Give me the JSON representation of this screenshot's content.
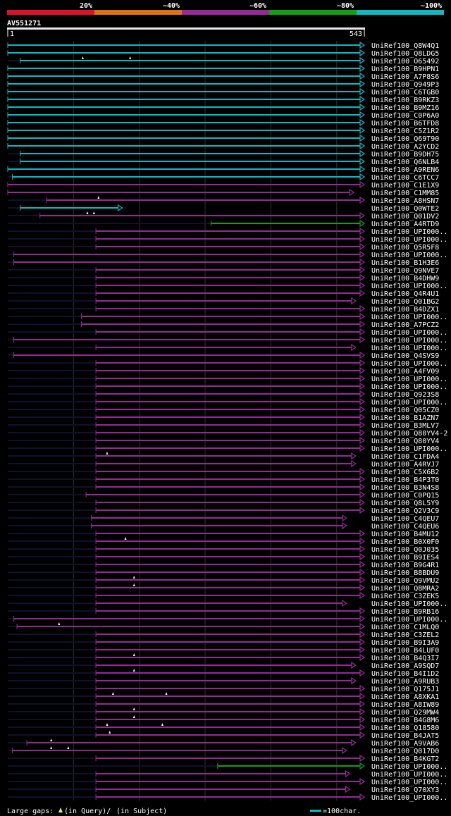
{
  "legend": {
    "scale_labels": [
      "20%",
      "~40%",
      "~60%",
      "~80%",
      "~100%"
    ],
    "scale_colors": [
      "#e0102a",
      "#e07010",
      "#982898",
      "#10a010",
      "#10b8c0"
    ]
  },
  "query": {
    "id": "AV551271",
    "start": "1",
    "end": "543",
    "length": 543
  },
  "footer": {
    "gaps_label": "Large gaps:",
    "in_query": "(in Query)/",
    "in_subject": "(in Subject)",
    "scale_label": "=100char."
  },
  "colors": {
    "cyan": "#10b8c0",
    "magenta": "#982898",
    "green": "#10a010",
    "dim": "#101030",
    "grid": "#303030"
  },
  "hits": [
    {
      "name": "UniRef100_Q8W4Q1",
      "color": "cyan",
      "start": 1,
      "end": 543
    },
    {
      "name": "UniRef100_Q8LDG5",
      "color": "cyan",
      "start": 1,
      "end": 543
    },
    {
      "name": "UniRef100_O65492",
      "color": "cyan",
      "start": 20,
      "end": 543,
      "markers": [
        115,
        187
      ]
    },
    {
      "name": "UniRef100_B9HPN1",
      "color": "cyan",
      "start": 1,
      "end": 543
    },
    {
      "name": "UniRef100_A7P8S6",
      "color": "cyan",
      "start": 1,
      "end": 543
    },
    {
      "name": "UniRef100_Q949P3",
      "color": "cyan",
      "start": 1,
      "end": 543
    },
    {
      "name": "UniRef100_C6TGB0",
      "color": "cyan",
      "start": 1,
      "end": 543
    },
    {
      "name": "UniRef100_B9RKZ3",
      "color": "cyan",
      "start": 1,
      "end": 543
    },
    {
      "name": "UniRef100_B9MZ16",
      "color": "cyan",
      "start": 1,
      "end": 543
    },
    {
      "name": "UniRef100_C0P6A0",
      "color": "cyan",
      "start": 1,
      "end": 543
    },
    {
      "name": "UniRef100_B6TFD8",
      "color": "cyan",
      "start": 1,
      "end": 543
    },
    {
      "name": "UniRef100_C5Z1R2",
      "color": "cyan",
      "start": 1,
      "end": 543
    },
    {
      "name": "UniRef100_Q69T90",
      "color": "cyan",
      "start": 1,
      "end": 543
    },
    {
      "name": "UniRef100_A2YCD2",
      "color": "cyan",
      "start": 1,
      "end": 543
    },
    {
      "name": "UniRef100_B9DH75",
      "color": "cyan",
      "start": 20,
      "end": 543
    },
    {
      "name": "UniRef100_Q6NLB4",
      "color": "cyan",
      "start": 20,
      "end": 543
    },
    {
      "name": "UniRef100_A9REN6",
      "color": "cyan",
      "start": 1,
      "end": 543
    },
    {
      "name": "UniRef100_C6TCC7",
      "color": "cyan",
      "start": 8,
      "end": 543
    },
    {
      "name": "UniRef100_C1E1X9",
      "color": "magenta",
      "start": 1,
      "end": 543
    },
    {
      "name": "UniRef100_C1MM85",
      "color": "magenta",
      "start": 1,
      "end": 527
    },
    {
      "name": "UniRef100_A8HSN7",
      "color": "magenta",
      "start": 60,
      "end": 543,
      "markers": [
        139
      ]
    },
    {
      "name": "UniRef100_Q0WTE2",
      "color": "cyan",
      "start": 20,
      "end": 175
    },
    {
      "name": "UniRef100_Q01DV2",
      "color": "magenta",
      "start": 50,
      "end": 543,
      "markers": [
        122,
        132
      ]
    },
    {
      "name": "UniRef100_A4RTD9",
      "color": "green",
      "start": 310,
      "end": 543
    },
    {
      "name": "UniRef100_UPI000..",
      "color": "magenta",
      "start": 135,
      "end": 543
    },
    {
      "name": "UniRef100_UPI000..",
      "color": "magenta",
      "start": 135,
      "end": 543
    },
    {
      "name": "UniRef100_Q5R5F8",
      "color": "magenta",
      "start": 135,
      "end": 543
    },
    {
      "name": "UniRef100_UPI000..",
      "color": "magenta",
      "start": 10,
      "end": 543
    },
    {
      "name": "UniRef100_B1H3E6",
      "color": "magenta",
      "start": 10,
      "end": 543
    },
    {
      "name": "UniRef100_Q9NVE7",
      "color": "magenta",
      "start": 135,
      "end": 543
    },
    {
      "name": "UniRef100_B4DHW9",
      "color": "magenta",
      "start": 135,
      "end": 543
    },
    {
      "name": "UniRef100_UPI000..",
      "color": "magenta",
      "start": 135,
      "end": 543
    },
    {
      "name": "UniRef100_Q4R4U1",
      "color": "magenta",
      "start": 135,
      "end": 543
    },
    {
      "name": "UniRef100_Q01BG2",
      "color": "magenta",
      "start": 135,
      "end": 530
    },
    {
      "name": "UniRef100_B4DZX1",
      "color": "magenta",
      "start": 135,
      "end": 543
    },
    {
      "name": "UniRef100_UPI000..",
      "color": "magenta",
      "start": 113,
      "end": 543
    },
    {
      "name": "UniRef100_A7PCZ2",
      "color": "magenta",
      "start": 113,
      "end": 543
    },
    {
      "name": "UniRef100_UPI000..",
      "color": "magenta",
      "start": 135,
      "end": 543
    },
    {
      "name": "UniRef100_UPI000..",
      "color": "magenta",
      "start": 10,
      "end": 543
    },
    {
      "name": "UniRef100_UPI000..",
      "color": "magenta",
      "start": 135,
      "end": 530
    },
    {
      "name": "UniRef100_Q4SVS9",
      "color": "magenta",
      "start": 10,
      "end": 543
    },
    {
      "name": "UniRef100_UPI000..",
      "color": "magenta",
      "start": 135,
      "end": 543
    },
    {
      "name": "UniRef100_A4FV09",
      "color": "magenta",
      "start": 135,
      "end": 543
    },
    {
      "name": "UniRef100_UPI000..",
      "color": "magenta",
      "start": 135,
      "end": 543
    },
    {
      "name": "UniRef100_UPI000..",
      "color": "magenta",
      "start": 135,
      "end": 543
    },
    {
      "name": "UniRef100_Q923S8",
      "color": "magenta",
      "start": 135,
      "end": 543
    },
    {
      "name": "UniRef100_UPI000..",
      "color": "magenta",
      "start": 135,
      "end": 543
    },
    {
      "name": "UniRef100_Q05CZ0",
      "color": "magenta",
      "start": 135,
      "end": 543
    },
    {
      "name": "UniRef100_B1AZN7",
      "color": "magenta",
      "start": 135,
      "end": 543
    },
    {
      "name": "UniRef100_B3MLV7",
      "color": "magenta",
      "start": 135,
      "end": 543
    },
    {
      "name": "UniRef100_Q80YV4-2",
      "color": "magenta",
      "start": 135,
      "end": 543
    },
    {
      "name": "UniRef100_Q80YV4",
      "color": "magenta",
      "start": 135,
      "end": 543
    },
    {
      "name": "UniRef100_UPI000..",
      "color": "magenta",
      "start": 135,
      "end": 543
    },
    {
      "name": "UniRef100_C1FDA4",
      "color": "magenta",
      "start": 135,
      "end": 530,
      "markers": [
        152
      ]
    },
    {
      "name": "UniRef100_A4RVJ7",
      "color": "magenta",
      "start": 135,
      "end": 530
    },
    {
      "name": "UniRef100_C5X6B2",
      "color": "magenta",
      "start": 135,
      "end": 543
    },
    {
      "name": "UniRef100_B4P3T0",
      "color": "magenta",
      "start": 135,
      "end": 543
    },
    {
      "name": "UniRef100_B3N4S8",
      "color": "magenta",
      "start": 135,
      "end": 543
    },
    {
      "name": "UniRef100_C0PQ15",
      "color": "magenta",
      "start": 120,
      "end": 543
    },
    {
      "name": "UniRef100_Q8L5Y9",
      "color": "magenta",
      "start": 135,
      "end": 543
    },
    {
      "name": "UniRef100_Q2V3C9",
      "color": "magenta",
      "start": 135,
      "end": 543
    },
    {
      "name": "UniRef100_C4QEU7",
      "color": "magenta",
      "start": 128,
      "end": 516
    },
    {
      "name": "UniRef100_C4QEU6",
      "color": "magenta",
      "start": 128,
      "end": 516
    },
    {
      "name": "UniRef100_B4MU12",
      "color": "magenta",
      "start": 135,
      "end": 543
    },
    {
      "name": "UniRef100_B0X0F0",
      "color": "magenta",
      "start": 135,
      "end": 543,
      "markers": [
        180
      ]
    },
    {
      "name": "UniRef100_Q0J035",
      "color": "magenta",
      "start": 135,
      "end": 543
    },
    {
      "name": "UniRef100_B9IES4",
      "color": "magenta",
      "start": 135,
      "end": 543
    },
    {
      "name": "UniRef100_B9G4R1",
      "color": "magenta",
      "start": 135,
      "end": 543
    },
    {
      "name": "UniRef100_B8BDU9",
      "color": "magenta",
      "start": 135,
      "end": 543
    },
    {
      "name": "UniRef100_Q9VMU2",
      "color": "magenta",
      "start": 135,
      "end": 543,
      "markers": [
        193
      ]
    },
    {
      "name": "UniRef100_Q8MRA2",
      "color": "magenta",
      "start": 135,
      "end": 543,
      "markers": [
        193
      ]
    },
    {
      "name": "UniRef100_C3ZEK5",
      "color": "magenta",
      "start": 135,
      "end": 543
    },
    {
      "name": "UniRef100_UPI000..",
      "color": "magenta",
      "start": 135,
      "end": 516
    },
    {
      "name": "UniRef100_B9RB16",
      "color": "magenta",
      "start": 135,
      "end": 543
    },
    {
      "name": "UniRef100_UPI000..",
      "color": "magenta",
      "start": 10,
      "end": 543
    },
    {
      "name": "UniRef100_C1MLQ0",
      "color": "magenta",
      "start": 15,
      "end": 543,
      "markers": [
        79
      ]
    },
    {
      "name": "UniRef100_C3ZEL2",
      "color": "magenta",
      "start": 135,
      "end": 543
    },
    {
      "name": "UniRef100_B9I3A9",
      "color": "magenta",
      "start": 135,
      "end": 543
    },
    {
      "name": "UniRef100_B4LUF0",
      "color": "magenta",
      "start": 135,
      "end": 543
    },
    {
      "name": "UniRef100_B4Q3I7",
      "color": "magenta",
      "start": 135,
      "end": 543,
      "markers": [
        193
      ]
    },
    {
      "name": "UniRef100_A9SQD7",
      "color": "magenta",
      "start": 135,
      "end": 530
    },
    {
      "name": "UniRef100_B4I1D2",
      "color": "magenta",
      "start": 135,
      "end": 543,
      "markers": [
        193
      ]
    },
    {
      "name": "UniRef100_A9RUB3",
      "color": "magenta",
      "start": 135,
      "end": 530
    },
    {
      "name": "UniRef100_Q175J1",
      "color": "magenta",
      "start": 135,
      "end": 543
    },
    {
      "name": "UniRef100_A8XKA1",
      "color": "magenta",
      "start": 135,
      "end": 543,
      "markers": [
        161,
        242
      ]
    },
    {
      "name": "UniRef100_A8IW89",
      "color": "magenta",
      "start": 135,
      "end": 543
    },
    {
      "name": "UniRef100_Q29MW4",
      "color": "magenta",
      "start": 135,
      "end": 543,
      "markers": [
        193
      ]
    },
    {
      "name": "UniRef100_B4G8M6",
      "color": "magenta",
      "start": 135,
      "end": 543,
      "markers": [
        193
      ]
    },
    {
      "name": "UniRef100_Q18580",
      "color": "magenta",
      "start": 135,
      "end": 543,
      "markers": [
        152,
        236
      ]
    },
    {
      "name": "UniRef100_B4JAT5",
      "color": "magenta",
      "start": 135,
      "end": 543,
      "markers": [
        156
      ]
    },
    {
      "name": "UniRef100_A9VAB6",
      "color": "magenta",
      "start": 30,
      "end": 530,
      "markers": [
        67
      ]
    },
    {
      "name": "UniRef100_Q017D0",
      "color": "magenta",
      "start": 8,
      "end": 516,
      "markers": [
        67,
        93
      ]
    },
    {
      "name": "UniRef100_B4KGT2",
      "color": "magenta",
      "start": 135,
      "end": 543
    },
    {
      "name": "UniRef100_UPI000..",
      "color": "green",
      "start": 320,
      "end": 543
    },
    {
      "name": "UniRef100_UPI000..",
      "color": "magenta",
      "start": 135,
      "end": 521
    },
    {
      "name": "UniRef100_UPI000..",
      "color": "magenta",
      "start": 135,
      "end": 543
    },
    {
      "name": "UniRef100_Q70XY3",
      "color": "magenta",
      "start": 135,
      "end": 521
    },
    {
      "name": "UniRef100_UPI000..",
      "color": "magenta",
      "start": 135,
      "end": 543
    }
  ]
}
